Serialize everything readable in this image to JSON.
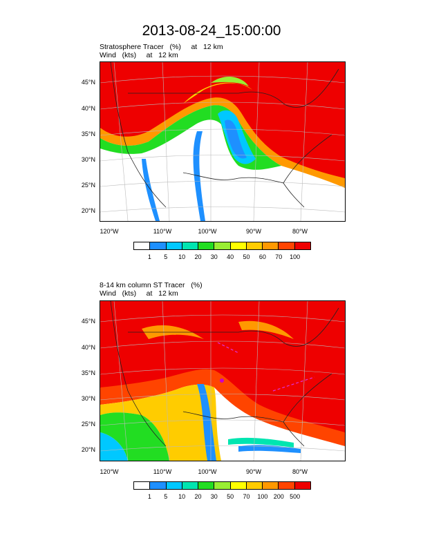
{
  "title": "2013-08-24_15:00:00",
  "panel1": {
    "line1": "Stratosphere Tracer   (%)     at   12 km",
    "line2": "Wind   (kts)     at   12 km",
    "lat_labels": [
      "45°N",
      "40°N",
      "35°N",
      "30°N",
      "25°N",
      "20°N"
    ],
    "lon_labels": [
      "120°W",
      "110°W",
      "100°W",
      "90°W",
      "80°W"
    ],
    "colorbar": {
      "colors": [
        "#ffffff",
        "#1e90ff",
        "#00c8ff",
        "#00e5b0",
        "#22dd22",
        "#99ee33",
        "#ffff00",
        "#ffcc00",
        "#ff9900",
        "#ff4400",
        "#ee0000"
      ],
      "labels": [
        "1",
        "5",
        "10",
        "20",
        "30",
        "40",
        "50",
        "60",
        "70",
        "100"
      ]
    }
  },
  "panel2": {
    "line1": "8-14 km column ST Tracer   (%)",
    "line2": "Wind   (kts)     at   12 km",
    "lat_labels": [
      "45°N",
      "40°N",
      "35°N",
      "30°N",
      "25°N",
      "20°N"
    ],
    "lon_labels": [
      "120°W",
      "110°W",
      "100°W",
      "90°W",
      "80°W"
    ],
    "colorbar": {
      "colors": [
        "#ffffff",
        "#1e90ff",
        "#00c8ff",
        "#00e5b0",
        "#22dd22",
        "#99ee33",
        "#ffff00",
        "#ffcc00",
        "#ff9900",
        "#ff4400",
        "#ee0000"
      ],
      "labels": [
        "1",
        "5",
        "10",
        "20",
        "30",
        "50",
        "70",
        "100",
        "200",
        "500"
      ]
    }
  }
}
